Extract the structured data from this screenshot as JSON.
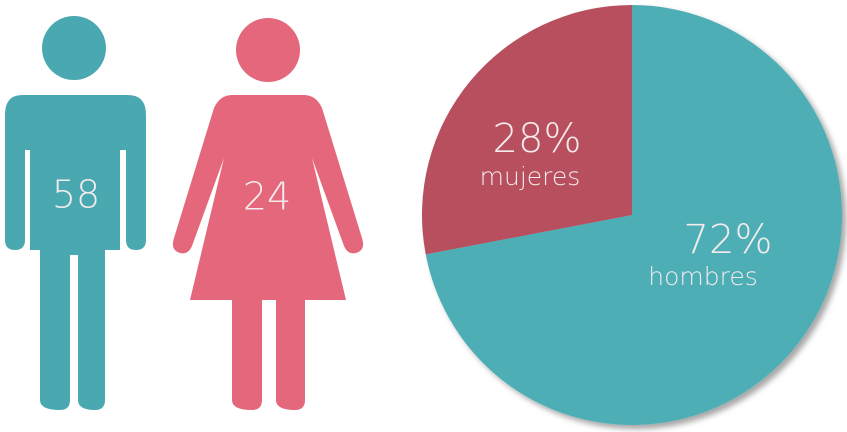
{
  "chart_data": [
    {
      "type": "pictograph",
      "values": [
        58,
        24
      ],
      "colors": [
        "#4aa8b0",
        "#e4677b"
      ]
    },
    {
      "type": "pie",
      "categories": [
        "hombres",
        "mujeres"
      ],
      "values": [
        72,
        28
      ],
      "value_labels": [
        "72%",
        "28%"
      ],
      "colors": [
        "#4daeb6",
        "#b84f5f"
      ]
    }
  ]
}
